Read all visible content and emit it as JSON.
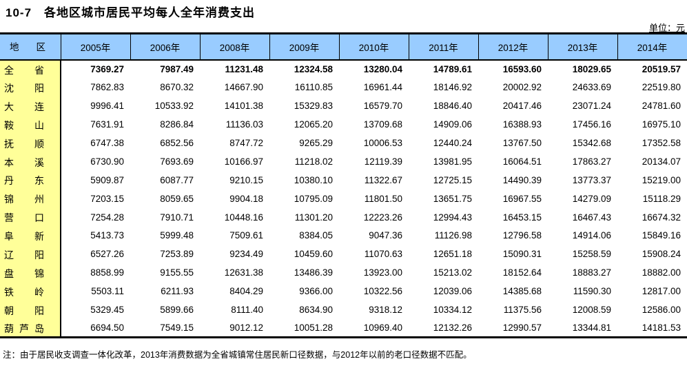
{
  "title": "10-7　各地区城市居民平均每人全年消费支出",
  "unit_label": "单位：元",
  "note": "注：由于居民收支调查一体化改革，2013年消费数据为全省城镇常住居民新口径数据，与2012年以前的老口径数据不匹配。",
  "colors": {
    "header_bg": "#99CCFF",
    "region_col_bg": "#FFFF99",
    "border": "#000000"
  },
  "table": {
    "region_header": "地区",
    "year_headers": [
      "2005年",
      "2006年",
      "2008年",
      "2009年",
      "2010年",
      "2011年",
      "2012年",
      "2013年",
      "2014年"
    ],
    "rows": [
      {
        "region": "全省",
        "bold": true,
        "values": [
          "7369.27",
          "7987.49",
          "11231.48",
          "12324.58",
          "13280.04",
          "14789.61",
          "16593.60",
          "18029.65",
          "20519.57"
        ]
      },
      {
        "region": "沈阳",
        "bold": false,
        "values": [
          "7862.83",
          "8670.32",
          "14667.90",
          "16110.85",
          "16961.44",
          "18146.92",
          "20002.92",
          "24633.69",
          "22519.80"
        ]
      },
      {
        "region": "大连",
        "bold": false,
        "values": [
          "9996.41",
          "10533.92",
          "14101.38",
          "15329.83",
          "16579.70",
          "18846.40",
          "20417.46",
          "23071.24",
          "24781.60"
        ]
      },
      {
        "region": "鞍山",
        "bold": false,
        "values": [
          "7631.91",
          "8286.84",
          "11136.03",
          "12065.20",
          "13709.68",
          "14909.06",
          "16388.93",
          "17456.16",
          "16975.10"
        ]
      },
      {
        "region": "抚顺",
        "bold": false,
        "values": [
          "6747.38",
          "6852.56",
          "8747.72",
          "9265.29",
          "10006.53",
          "12440.24",
          "13767.50",
          "15342.68",
          "17352.58"
        ]
      },
      {
        "region": "本溪",
        "bold": false,
        "values": [
          "6730.90",
          "7693.69",
          "10166.97",
          "11218.02",
          "12119.39",
          "13981.95",
          "16064.51",
          "17863.27",
          "20134.07"
        ]
      },
      {
        "region": "丹东",
        "bold": false,
        "values": [
          "5909.87",
          "6087.77",
          "9210.15",
          "10380.10",
          "11322.67",
          "12725.15",
          "14490.39",
          "13773.37",
          "15219.00"
        ]
      },
      {
        "region": "锦州",
        "bold": false,
        "values": [
          "7203.15",
          "8059.65",
          "9904.18",
          "10795.09",
          "11801.50",
          "13651.75",
          "16967.55",
          "14279.09",
          "15118.29"
        ]
      },
      {
        "region": "营口",
        "bold": false,
        "values": [
          "7254.28",
          "7910.71",
          "10448.16",
          "11301.20",
          "12223.26",
          "12994.43",
          "16453.15",
          "16467.43",
          "16674.32"
        ]
      },
      {
        "region": "阜新",
        "bold": false,
        "values": [
          "5413.73",
          "5999.48",
          "7509.61",
          "8384.05",
          "9047.36",
          "11126.98",
          "12796.58",
          "14914.06",
          "15849.16"
        ]
      },
      {
        "region": "辽阳",
        "bold": false,
        "values": [
          "6527.26",
          "7253.89",
          "9234.49",
          "10459.60",
          "11070.63",
          "12651.18",
          "15090.31",
          "15258.59",
          "15908.24"
        ]
      },
      {
        "region": "盘锦",
        "bold": false,
        "values": [
          "8858.99",
          "9155.55",
          "12631.38",
          "13486.39",
          "13923.00",
          "15213.02",
          "18152.64",
          "18883.27",
          "18882.00"
        ]
      },
      {
        "region": "铁岭",
        "bold": false,
        "values": [
          "5503.11",
          "6211.93",
          "8404.29",
          "9366.00",
          "10322.56",
          "12039.06",
          "14385.68",
          "11590.30",
          "12817.00"
        ]
      },
      {
        "region": "朝阳",
        "bold": false,
        "values": [
          "5329.45",
          "5899.66",
          "8111.40",
          "8634.90",
          "9318.12",
          "10334.12",
          "11375.56",
          "12008.59",
          "12586.00"
        ]
      },
      {
        "region": "葫芦岛",
        "bold": false,
        "values": [
          "6694.50",
          "7549.15",
          "9012.12",
          "10051.28",
          "10969.40",
          "12132.26",
          "12990.57",
          "13344.81",
          "14181.53"
        ]
      }
    ]
  }
}
